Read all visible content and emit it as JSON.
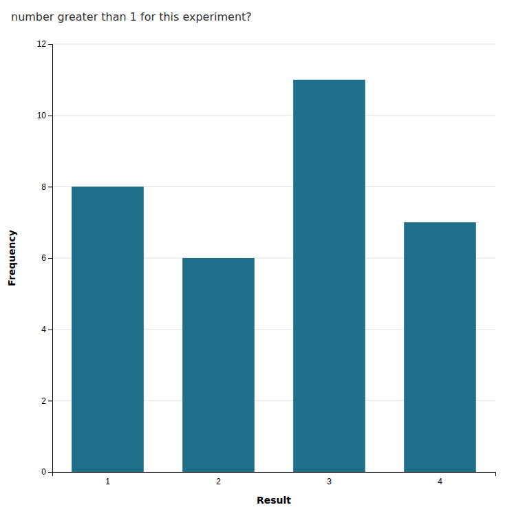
{
  "chart_data": {
    "type": "bar",
    "title": "number greater than 1 for this experiment?",
    "xlabel": "Result",
    "ylabel": "Frequency",
    "categories": [
      "1",
      "2",
      "3",
      "4"
    ],
    "values": [
      8,
      6,
      11,
      7
    ],
    "color": "#1f6f8b",
    "ylim": [
      0,
      12
    ],
    "yticks": [
      0,
      2,
      4,
      6,
      8,
      10,
      12
    ],
    "grid": true
  }
}
